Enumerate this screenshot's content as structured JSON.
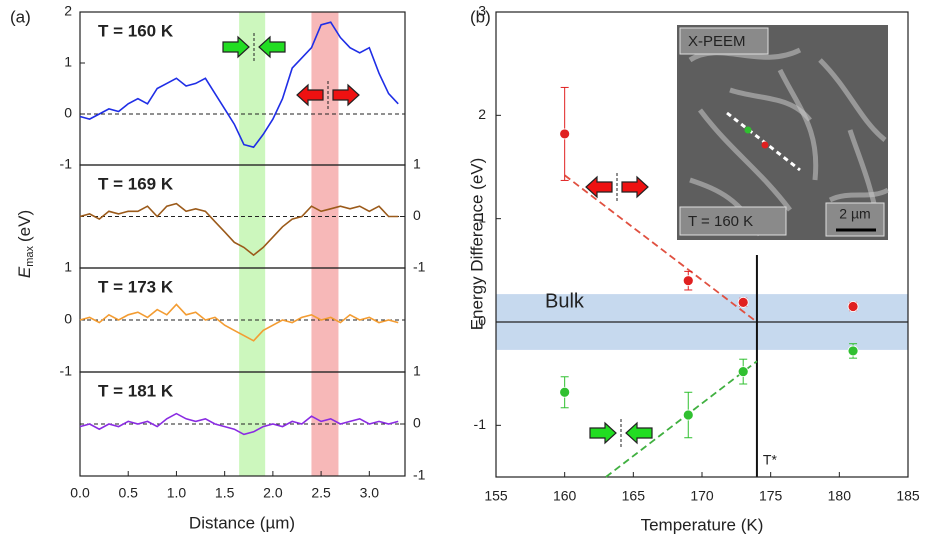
{
  "chart_data": [
    {
      "type": "line",
      "panel_label": "(a)",
      "xlabel": "Distance (µm)",
      "ylabel": {
        "symbol": "E",
        "subscript": "max",
        "unit": "(eV)"
      },
      "xlim": [
        0,
        3.37
      ],
      "xticks": [
        {
          "value": 0,
          "label": "0.0"
        },
        0.5,
        {
          "value": 1,
          "label": "1.0"
        },
        1.5,
        {
          "value": 2,
          "label": "2.0"
        },
        2.5,
        {
          "value": 3,
          "label": "3.0"
        }
      ],
      "highlight_bands": [
        {
          "x": [
            1.65,
            1.92
          ],
          "color": "#ccf7bd"
        },
        {
          "x": [
            2.4,
            2.68
          ],
          "color": "#f7b8b8"
        }
      ],
      "x": [
        0,
        0.1,
        0.2,
        0.3,
        0.4,
        0.5,
        0.6,
        0.7,
        0.8,
        0.9,
        1.0,
        1.1,
        1.2,
        1.3,
        1.4,
        1.5,
        1.6,
        1.7,
        1.8,
        1.9,
        2.0,
        2.1,
        2.2,
        2.3,
        2.4,
        2.5,
        2.6,
        2.7,
        2.8,
        2.9,
        3.0,
        3.1,
        3.2,
        3.3
      ],
      "subplots": [
        {
          "title": "T = 160 K",
          "ylim": [
            -1,
            2
          ],
          "yticks": [
            -1,
            0,
            1,
            2
          ],
          "tick_side": "left",
          "reference_line": 0,
          "series": [
            {
              "color": "#1f2ee6",
              "values": [
                -0.05,
                -0.1,
                0.0,
                0.1,
                0.05,
                0.2,
                0.3,
                0.2,
                0.5,
                0.6,
                0.7,
                0.55,
                0.6,
                0.7,
                0.4,
                0.1,
                -0.2,
                -0.6,
                -0.65,
                -0.4,
                -0.1,
                0.3,
                0.9,
                1.1,
                1.3,
                1.75,
                1.8,
                1.5,
                1.3,
                1.2,
                1.3,
                0.8,
                0.4,
                0.2
              ]
            }
          ]
        },
        {
          "title": "T = 169 K",
          "ylim": [
            -1,
            1
          ],
          "yticks": [
            -1,
            0,
            1
          ],
          "tick_side": "right",
          "reference_line": 0,
          "series": [
            {
              "color": "#9b5a1a",
              "values": [
                0.0,
                0.05,
                -0.05,
                0.1,
                0.05,
                0.1,
                0.1,
                0.2,
                0.0,
                0.2,
                0.25,
                0.1,
                0.15,
                0.1,
                -0.1,
                -0.3,
                -0.5,
                -0.6,
                -0.75,
                -0.6,
                -0.4,
                -0.2,
                -0.05,
                0.0,
                0.2,
                0.1,
                0.15,
                0.2,
                0.15,
                0.2,
                0.1,
                0.2,
                0.0,
                0.0
              ]
            }
          ]
        },
        {
          "title": "T = 173 K",
          "ylim": [
            -1,
            1
          ],
          "yticks": [
            -1,
            0,
            1
          ],
          "tick_side": "left",
          "reference_line": 0,
          "series": [
            {
              "color": "#f39c32",
              "values": [
                0.0,
                0.05,
                -0.05,
                0.1,
                0.0,
                0.1,
                0.15,
                0.05,
                0.2,
                0.1,
                0.3,
                0.1,
                0.15,
                0.0,
                0.05,
                -0.1,
                -0.2,
                -0.3,
                -0.4,
                -0.2,
                -0.1,
                0.0,
                -0.05,
                0.05,
                0.1,
                0.0,
                0.05,
                -0.05,
                0.1,
                0.0,
                0.05,
                -0.05,
                0.0,
                -0.05
              ]
            }
          ]
        },
        {
          "title": "T = 181 K",
          "ylim": [
            -1,
            1
          ],
          "yticks": [
            -1,
            0,
            1
          ],
          "tick_side": "right",
          "reference_line": 0,
          "series": [
            {
              "color": "#8a2be2",
              "values": [
                -0.05,
                0.0,
                -0.1,
                0.0,
                -0.05,
                0.05,
                0.0,
                0.05,
                -0.05,
                0.1,
                0.2,
                0.1,
                0.05,
                0.1,
                0.0,
                -0.05,
                -0.1,
                -0.2,
                -0.15,
                -0.05,
                0.0,
                -0.05,
                0.05,
                0.0,
                0.15,
                0.05,
                0.1,
                0.0,
                0.05,
                0.1,
                0.0,
                0.05,
                0.0,
                0.05
              ]
            }
          ]
        }
      ]
    },
    {
      "type": "scatter",
      "panel_label": "(b)",
      "xlabel": "Temperature (K)",
      "ylabel": "Energy Difference (eV)",
      "xlim": [
        155,
        185
      ],
      "xticks": [
        155,
        160,
        165,
        170,
        175,
        180,
        185
      ],
      "ylim": [
        -1.5,
        3
      ],
      "yticks": [
        -1,
        0,
        1,
        2,
        3
      ],
      "series": [
        {
          "color": "#e02020",
          "x": [
            160,
            169,
            173,
            181
          ],
          "values": [
            1.82,
            0.4,
            0.19,
            0.15
          ],
          "errors": [
            0.45,
            0.09,
            0.04,
            0.04
          ]
        },
        {
          "color": "#30c030",
          "x": [
            160,
            169,
            173,
            181
          ],
          "values": [
            -0.68,
            -0.9,
            -0.48,
            -0.28
          ],
          "errors": [
            0.15,
            0.22,
            0.12,
            0.07
          ]
        }
      ],
      "fit_lines": [
        {
          "color": "#e05040",
          "x": [
            160,
            174
          ],
          "y": [
            1.42,
            0
          ]
        },
        {
          "color": "#40b040",
          "x": [
            163,
            174
          ],
          "y": [
            -1.5,
            -0.38
          ]
        }
      ],
      "bulk_band": {
        "label": "Bulk",
        "y": [
          -0.27,
          0.27
        ],
        "color": "#c6d9ee"
      },
      "transition": {
        "label": "T*",
        "x": 174
      },
      "reference_line": 0,
      "inset": {
        "title": "X-PEEM",
        "temperature_label": "T = 160 K",
        "scale_label": "2 µm"
      }
    }
  ]
}
